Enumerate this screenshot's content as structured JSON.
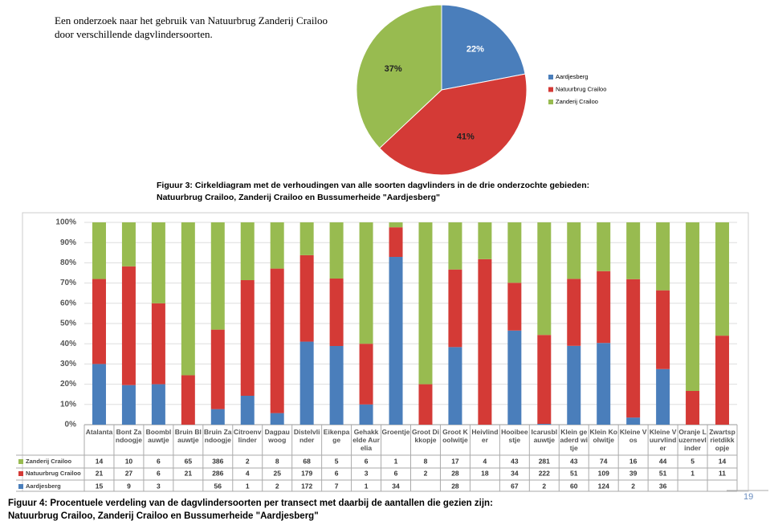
{
  "intro": [
    "Een onderzoek naar het gebruik van Natuurbrug Zanderij Crailoo",
    "door verschillende dagvlindersoorten."
  ],
  "chart_data": [
    {
      "type": "pie",
      "categories": [
        "Aardjesberg",
        "Natuurbrug Crailoo",
        "Zanderij Crailoo"
      ],
      "values": [
        22,
        41,
        37
      ],
      "value_labels": [
        "22%",
        "41%",
        "37%"
      ],
      "colors": [
        "#4a7ebb",
        "#d43a36",
        "#98bb50"
      ],
      "legend": "right"
    },
    {
      "type": "stacked_bar",
      "stacking": "percent",
      "categories": [
        "Atalanta",
        "Bont Zandoogje",
        "Boomblauwtje",
        "Bruin Blauwtje",
        "Bruin Zandoogje",
        "Citroenvlinder",
        "Dagpauwoog",
        "Distelvlinder",
        "Eikenpage",
        "Gehakkelde Aurelia",
        "Groentje",
        "Groot Dikkopje",
        "Groot Koolwitje",
        "Heivlinder",
        "Hooibeestje",
        "Icarusblauwtje",
        "Klein geaderd witje",
        "Klein Koolwitje",
        "Kleine Vos",
        "Kleine Vuurvlinder",
        "Oranje Luzernevlinder",
        "Zwartsprietdikkopje"
      ],
      "series": [
        {
          "name": "Zanderij Crailoo",
          "color": "#98bb50",
          "values": [
            14,
            10,
            6,
            65,
            386,
            2,
            8,
            68,
            5,
            6,
            1,
            8,
            17,
            4,
            43,
            281,
            43,
            74,
            16,
            44,
            5,
            14
          ]
        },
        {
          "name": "Natuurbrug Crailoo",
          "color": "#d43a36",
          "values": [
            21,
            27,
            6,
            21,
            286,
            4,
            25,
            179,
            6,
            3,
            6,
            2,
            28,
            18,
            34,
            222,
            51,
            109,
            39,
            51,
            1,
            11
          ]
        },
        {
          "name": "Aardjesberg",
          "color": "#4a7ebb",
          "values": [
            15,
            9,
            3,
            null,
            56,
            1,
            2,
            172,
            7,
            1,
            34,
            null,
            28,
            null,
            67,
            2,
            60,
            124,
            2,
            36,
            null,
            null
          ]
        }
      ],
      "ylim": [
        0,
        100
      ],
      "yticks": [
        {
          "value": 0,
          "label": "0%"
        },
        {
          "value": 10,
          "label": "10%"
        },
        {
          "value": 20,
          "label": "20%"
        },
        {
          "value": 30,
          "label": "30%"
        },
        {
          "value": 40,
          "label": "40%"
        },
        {
          "value": 50,
          "label": "50%"
        },
        {
          "value": 60,
          "label": "60%"
        },
        {
          "value": 70,
          "label": "70%"
        },
        {
          "value": 80,
          "label": "80%"
        },
        {
          "value": 90,
          "label": "90%"
        },
        {
          "value": 100,
          "label": "100%"
        }
      ],
      "grid": true,
      "data_table": true
    }
  ],
  "figure3_caption": [
    "Figuur 3: Cirkeldiagram met de verhoudingen van alle soorten dagvlinders in de drie onderzochte gebieden:",
    "Natuurbrug Crailoo, Zanderij Crailoo en Bussumerheide \"Aardjesberg\""
  ],
  "figure4_caption": [
    "Figuur 4: Procentuele verdeling van de dagvlindersoorten per transect met daarbij de aantallen die gezien zijn:",
    "Natuurbrug Crailoo, Zanderij Crailoo en Bussumerheide \"Aardjesberg\""
  ],
  "page_number": 19
}
